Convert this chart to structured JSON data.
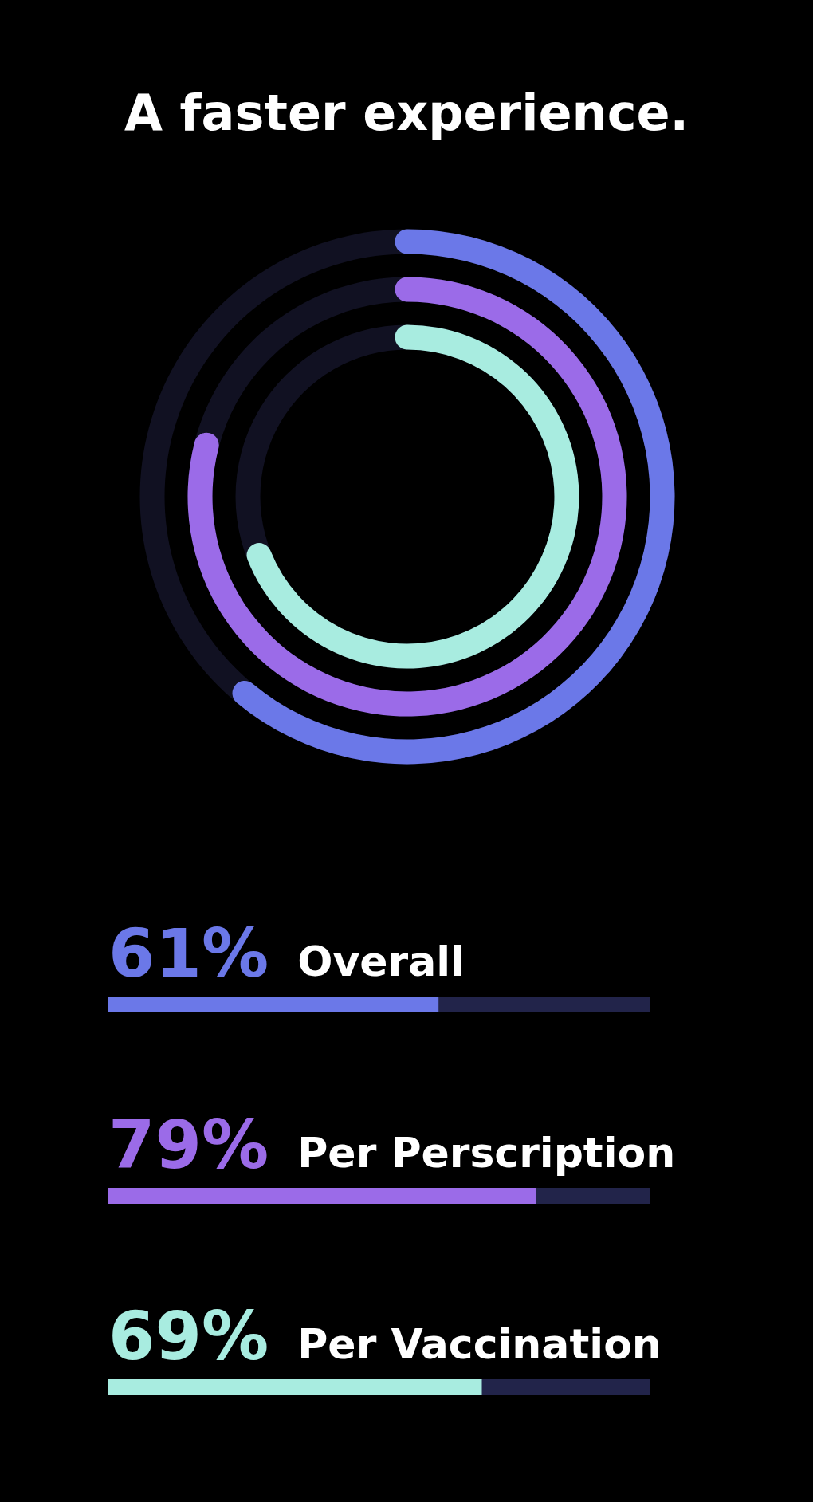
{
  "chart_data": {
    "type": "bar",
    "title": "A faster experience.",
    "orientation": "horizontal",
    "categories": [
      "Overall",
      "Per Perscription",
      "Per Vaccination"
    ],
    "values": [
      61,
      79,
      69
    ],
    "value_labels": [
      "61%",
      "79%",
      "69%"
    ],
    "colors": [
      "#6b78e8",
      "#9b6be8",
      "#a8ece0"
    ],
    "xlim": [
      0,
      100
    ]
  }
}
